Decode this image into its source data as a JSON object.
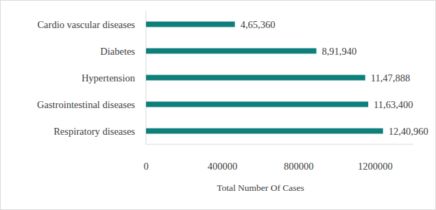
{
  "chart_data": {
    "type": "bar",
    "orientation": "horizontal",
    "x_label": "Total Number Of Cases",
    "categories": [
      "Cardio vascular diseases",
      "Diabetes",
      "Hypertension",
      "Gastrointestinal diseases",
      "Respiratory diseases"
    ],
    "values": [
      465360,
      891940,
      1147888,
      1163400,
      1240960
    ],
    "value_labels": [
      "4,65,360",
      "8,91,940",
      "11,47,888",
      "11,63,400",
      "12,40,960"
    ],
    "color": "#0e7f7b",
    "xlim": [
      0,
      1400000
    ],
    "xticks": [
      0,
      400000,
      800000,
      1200000
    ],
    "data_labels": true,
    "grid": false
  }
}
